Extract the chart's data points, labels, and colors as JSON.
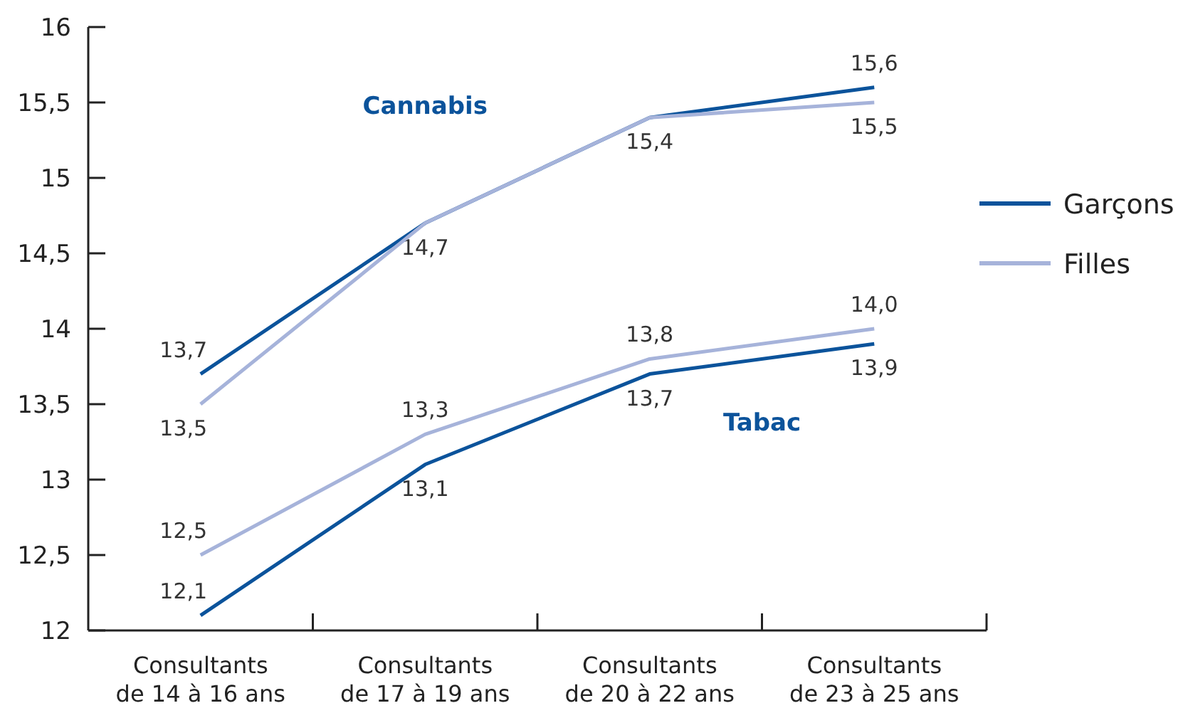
{
  "chart_data": {
    "type": "line",
    "categories": [
      "Consultants de 14 à 16 ans",
      "Consultants de 17 à 19 ans",
      "Consultants de 20 à 22 ans",
      "Consultants de 23 à 25 ans"
    ],
    "series": [
      {
        "name": "Garçons",
        "color": "#0b539b",
        "values": [
          13.7,
          14.7,
          15.4,
          15.6
        ],
        "value_labels": [
          "13,7",
          "14,7",
          "15,4",
          "15,6"
        ]
      },
      {
        "name": "Filles",
        "color": "#a6b3da",
        "values": [
          13.5,
          14.7,
          15.4,
          15.5
        ],
        "value_labels": [
          "13,5",
          null,
          null,
          "15,5"
        ]
      },
      {
        "color": "#0b539b",
        "values": [
          12.1,
          13.1,
          13.7,
          13.9
        ],
        "value_labels": [
          "12,1",
          "13,1",
          "13,7",
          "13,9"
        ]
      },
      {
        "color": "#a6b3da",
        "values": [
          12.5,
          13.3,
          13.8,
          14.0
        ],
        "value_labels": [
          "12,5",
          "13,3",
          "13,8",
          "14,0"
        ]
      }
    ],
    "ylim": [
      12,
      16
    ],
    "yticks": [
      12,
      {
        "value": 12.5,
        "label": "12,5"
      },
      13,
      {
        "value": 13.5,
        "label": "13,5"
      },
      14,
      {
        "value": 14.5,
        "label": "14,5"
      },
      15,
      {
        "value": 15.5,
        "label": "15,5"
      },
      16
    ],
    "annotations": [
      "Cannabis",
      "Tabac"
    ],
    "grid": false,
    "legend": "right",
    "marker": "none",
    "line_style": "solid"
  }
}
